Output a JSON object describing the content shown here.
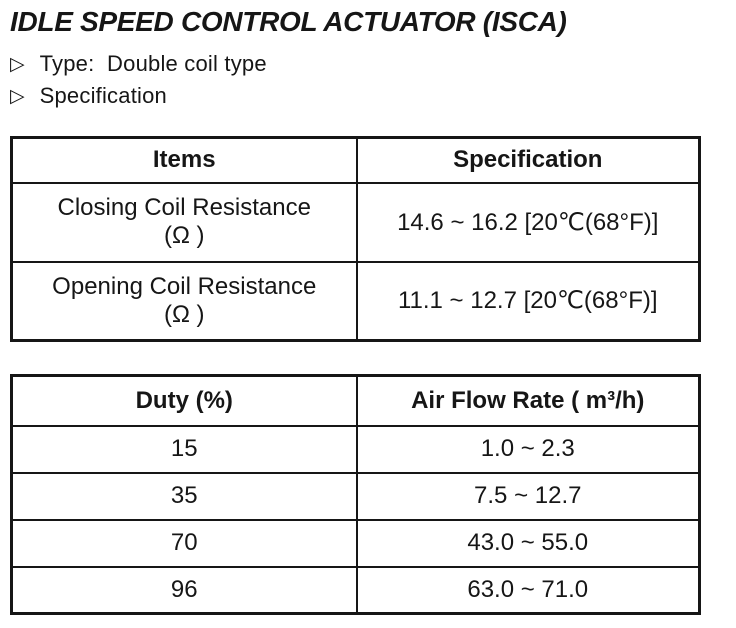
{
  "page": {
    "title": "IDLE SPEED CONTROL ACTUATOR (ISCA)",
    "bullets": [
      {
        "marker": "▷",
        "text": "Type:  Double coil type"
      },
      {
        "marker": "▷",
        "text": "Specification"
      }
    ]
  },
  "spec_table": {
    "headers": [
      "Items",
      "Specification"
    ],
    "rows": [
      {
        "item_line1": "Closing Coil Resistance",
        "item_line2": "(Ω )",
        "spec": "14.6 ~ 16.2 [20℃(68°F)]"
      },
      {
        "item_line1": "Opening Coil Resistance",
        "item_line2": "(Ω )",
        "spec": "11.1 ~ 12.7 [20℃(68°F)]"
      }
    ]
  },
  "duty_table": {
    "headers": [
      "Duty (%)",
      "Air Flow Rate ( m³/h)"
    ],
    "rows": [
      {
        "duty": "15",
        "air_flow": "1.0 ~ 2.3"
      },
      {
        "duty": "35",
        "air_flow": "7.5 ~ 12.7"
      },
      {
        "duty": "70",
        "air_flow": "43.0 ~ 55.0"
      },
      {
        "duty": "96",
        "air_flow": "63.0 ~ 71.0"
      }
    ]
  },
  "colors": {
    "ink": "#161616",
    "paper": "#ffffff"
  }
}
